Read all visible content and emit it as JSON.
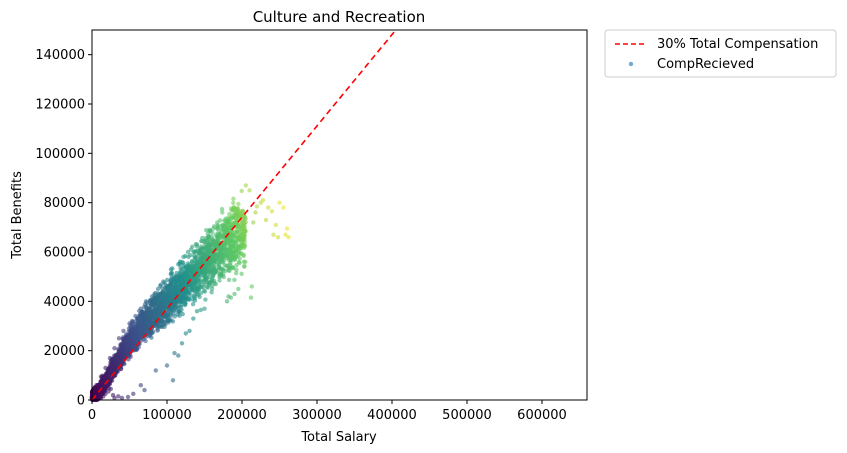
{
  "chart_data": {
    "type": "scatter",
    "title": "Culture and Recreation",
    "xlabel": "Total Salary",
    "ylabel": "Total Benefits",
    "xlim": [
      0,
      660000
    ],
    "ylim": [
      0,
      150000
    ],
    "xticks": [
      0,
      100000,
      200000,
      300000,
      400000,
      500000,
      600000
    ],
    "xtick_labels": [
      "0",
      "100000",
      "200000",
      "300000",
      "400000",
      "500000",
      "600000"
    ],
    "yticks": [
      0,
      20000,
      40000,
      60000,
      80000,
      100000,
      120000,
      140000
    ],
    "ytick_labels": [
      "0",
      "20000",
      "40000",
      "60000",
      "80000",
      "100000",
      "120000",
      "140000"
    ],
    "grid": false,
    "legend_position": "outside top-right",
    "colormap": "viridis",
    "series": [
      {
        "name": "30% Total Compensation",
        "kind": "line",
        "style": "dashed",
        "color": "#ff0000",
        "points": [
          [
            0,
            0
          ],
          [
            405000,
            150000
          ]
        ]
      },
      {
        "name": "CompRecieved",
        "kind": "scatter",
        "color": "#5a9cc7",
        "cloud_core": [
          [
            0,
            1000
          ],
          [
            3000,
            1500
          ],
          [
            6000,
            2500
          ],
          [
            10000,
            4000
          ],
          [
            15000,
            6000
          ],
          [
            20000,
            8500
          ],
          [
            25000,
            11000
          ],
          [
            30000,
            13500
          ],
          [
            35000,
            16000
          ],
          [
            40000,
            18500
          ],
          [
            45000,
            21000
          ],
          [
            50000,
            23500
          ],
          [
            55000,
            25500
          ],
          [
            60000,
            27500
          ],
          [
            65000,
            29500
          ],
          [
            70000,
            31000
          ],
          [
            75000,
            32500
          ],
          [
            80000,
            34000
          ],
          [
            85000,
            35500
          ],
          [
            90000,
            37000
          ],
          [
            95000,
            38500
          ],
          [
            100000,
            40000
          ],
          [
            105000,
            41500
          ],
          [
            110000,
            43000
          ],
          [
            115000,
            44500
          ],
          [
            120000,
            46000
          ],
          [
            125000,
            47500
          ],
          [
            130000,
            49000
          ],
          [
            135000,
            50500
          ],
          [
            140000,
            52000
          ],
          [
            145000,
            53500
          ],
          [
            150000,
            55000
          ],
          [
            155000,
            56500
          ],
          [
            160000,
            58000
          ],
          [
            165000,
            59500
          ],
          [
            170000,
            61000
          ],
          [
            175000,
            62000
          ],
          [
            180000,
            63500
          ],
          [
            185000,
            65000
          ],
          [
            190000,
            66500
          ],
          [
            195000,
            68000
          ],
          [
            200000,
            69500
          ]
        ],
        "outliers": [
          [
            2000,
            0
          ],
          [
            5000,
            500
          ],
          [
            8000,
            300
          ],
          [
            12000,
            800
          ],
          [
            15000,
            1500
          ],
          [
            18000,
            2500
          ],
          [
            22000,
            3500
          ],
          [
            25000,
            4500
          ],
          [
            28000,
            2000
          ],
          [
            30000,
            800
          ],
          [
            35000,
            1500
          ],
          [
            40000,
            800
          ],
          [
            48000,
            1200
          ],
          [
            55000,
            2500
          ],
          [
            65000,
            6000
          ],
          [
            70000,
            4000
          ],
          [
            85000,
            12000
          ],
          [
            100000,
            14000
          ],
          [
            110000,
            19000
          ],
          [
            115000,
            18000
          ],
          [
            108000,
            8000
          ],
          [
            120000,
            23000
          ],
          [
            125000,
            27000
          ],
          [
            130000,
            28000
          ],
          [
            135000,
            33000
          ],
          [
            140000,
            36000
          ],
          [
            145000,
            36500
          ],
          [
            150000,
            37000
          ],
          [
            160000,
            45000
          ],
          [
            165000,
            47000
          ],
          [
            170000,
            48500
          ],
          [
            175000,
            53000
          ],
          [
            180000,
            40000
          ],
          [
            182000,
            42000
          ],
          [
            185000,
            41500
          ],
          [
            190000,
            43000
          ],
          [
            195000,
            45000
          ],
          [
            212000,
            41500
          ],
          [
            213000,
            46000
          ],
          [
            215000,
            72000
          ],
          [
            218000,
            76000
          ],
          [
            220000,
            78500
          ],
          [
            225000,
            80000
          ],
          [
            228000,
            81000
          ],
          [
            232000,
            73000
          ],
          [
            235000,
            78000
          ],
          [
            240000,
            76500
          ],
          [
            242000,
            67000
          ],
          [
            245000,
            71000
          ],
          [
            248000,
            66000
          ],
          [
            250000,
            80000
          ],
          [
            255000,
            78000
          ],
          [
            258000,
            67000
          ],
          [
            260000,
            69500
          ],
          [
            262000,
            66000
          ],
          [
            205000,
            87000
          ],
          [
            210000,
            85000
          ],
          [
            200000,
            72000
          ],
          [
            192000,
            75000
          ],
          [
            185000,
            70500
          ],
          [
            178000,
            72500
          ],
          [
            172000,
            69000
          ],
          [
            165000,
            67000
          ],
          [
            160000,
            68000
          ],
          [
            155000,
            66000
          ],
          [
            150000,
            64000
          ],
          [
            140000,
            63000
          ],
          [
            132000,
            61000
          ],
          [
            128000,
            60000
          ],
          [
            122000,
            58000
          ],
          [
            115000,
            55000
          ],
          [
            105000,
            51000
          ],
          [
            95000,
            48000
          ],
          [
            88000,
            45000
          ],
          [
            80000,
            42000
          ],
          [
            72000,
            40000
          ],
          [
            65000,
            37000
          ],
          [
            58000,
            34000
          ],
          [
            50000,
            31000
          ],
          [
            42000,
            28000
          ],
          [
            36000,
            25000
          ],
          [
            30000,
            21000
          ],
          [
            24000,
            17000
          ],
          [
            18000,
            13000
          ],
          [
            12000,
            9500
          ],
          [
            8000,
            6000
          ]
        ]
      }
    ]
  }
}
